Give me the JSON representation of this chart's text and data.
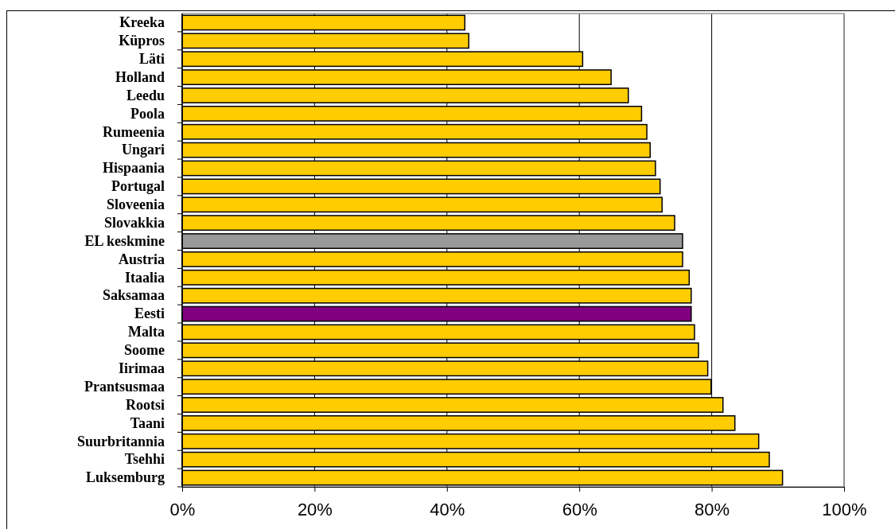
{
  "chart_data": {
    "type": "bar",
    "orientation": "horizontal",
    "categories": [
      "Kreeka",
      "Küpros",
      "Läti",
      "Holland",
      "Leedu",
      "Poola",
      "Rumeenia",
      "Ungari",
      "Hispaania",
      "Portugal",
      "Sloveenia",
      "Slovakkia",
      "EL keskmine",
      "Austria",
      "Itaalia",
      "Saksamaa",
      "Eesti",
      "Malta",
      "Soome",
      "Iirimaa",
      "Prantsusmaa",
      "Rootsi",
      "Taani",
      "Suurbritannia",
      "Tsehhi",
      "Luksemburg"
    ],
    "values": [
      0.427,
      0.433,
      0.605,
      0.648,
      0.674,
      0.694,
      0.702,
      0.707,
      0.715,
      0.722,
      0.725,
      0.744,
      0.756,
      0.756,
      0.766,
      0.769,
      0.769,
      0.774,
      0.78,
      0.794,
      0.799,
      0.817,
      0.835,
      0.871,
      0.887,
      0.907
    ],
    "colors": [
      "#ffcc00",
      "#ffcc00",
      "#ffcc00",
      "#ffcc00",
      "#ffcc00",
      "#ffcc00",
      "#ffcc00",
      "#ffcc00",
      "#ffcc00",
      "#ffcc00",
      "#ffcc00",
      "#ffcc00",
      "#999999",
      "#ffcc00",
      "#ffcc00",
      "#ffcc00",
      "#800080",
      "#ffcc00",
      "#ffcc00",
      "#ffcc00",
      "#ffcc00",
      "#ffcc00",
      "#ffcc00",
      "#ffcc00",
      "#ffcc00",
      "#ffcc00"
    ],
    "xlim": [
      0,
      1
    ],
    "xticks": [
      {
        "value": 0,
        "label": "0%"
      },
      {
        "value": 0.2,
        "label": "20%"
      },
      {
        "value": 0.4,
        "label": "40%"
      },
      {
        "value": 0.6,
        "label": "60%"
      },
      {
        "value": 0.8,
        "label": "80%"
      },
      {
        "value": 1,
        "label": "100%"
      }
    ],
    "grid": "x"
  }
}
